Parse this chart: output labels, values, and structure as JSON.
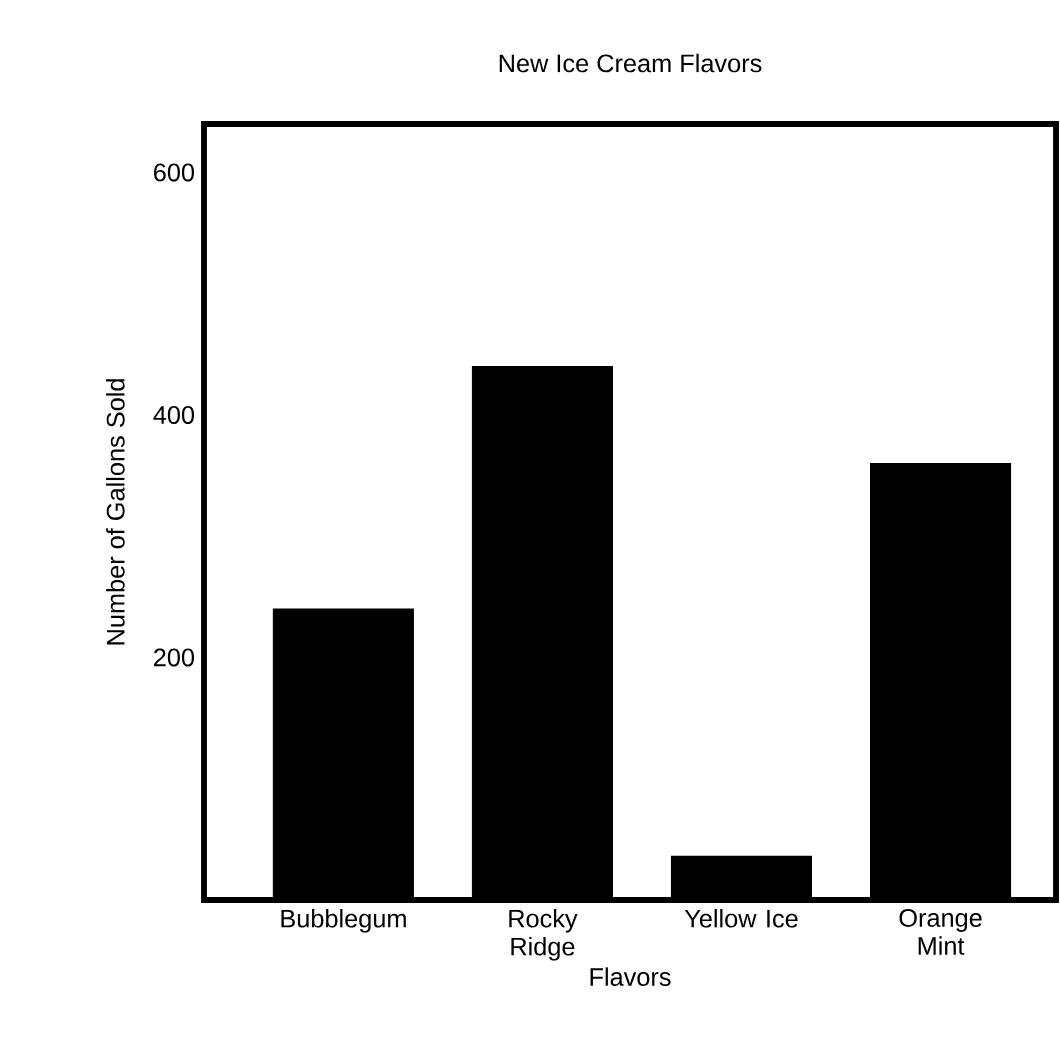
{
  "chart_data": {
    "type": "bar",
    "title": "New Ice Cream Flavors",
    "xlabel": "Flavors",
    "ylabel": "Number of Gallons Sold",
    "categories": [
      "Bubblegum",
      "Rocky Ridge",
      "Yellow Ice",
      "Orange Mint"
    ],
    "values": [
      240,
      440,
      36,
      360
    ],
    "color": "#000000",
    "ylim": [
      0,
      640
    ],
    "yticks": [
      200,
      400,
      600
    ],
    "grid": false
  }
}
